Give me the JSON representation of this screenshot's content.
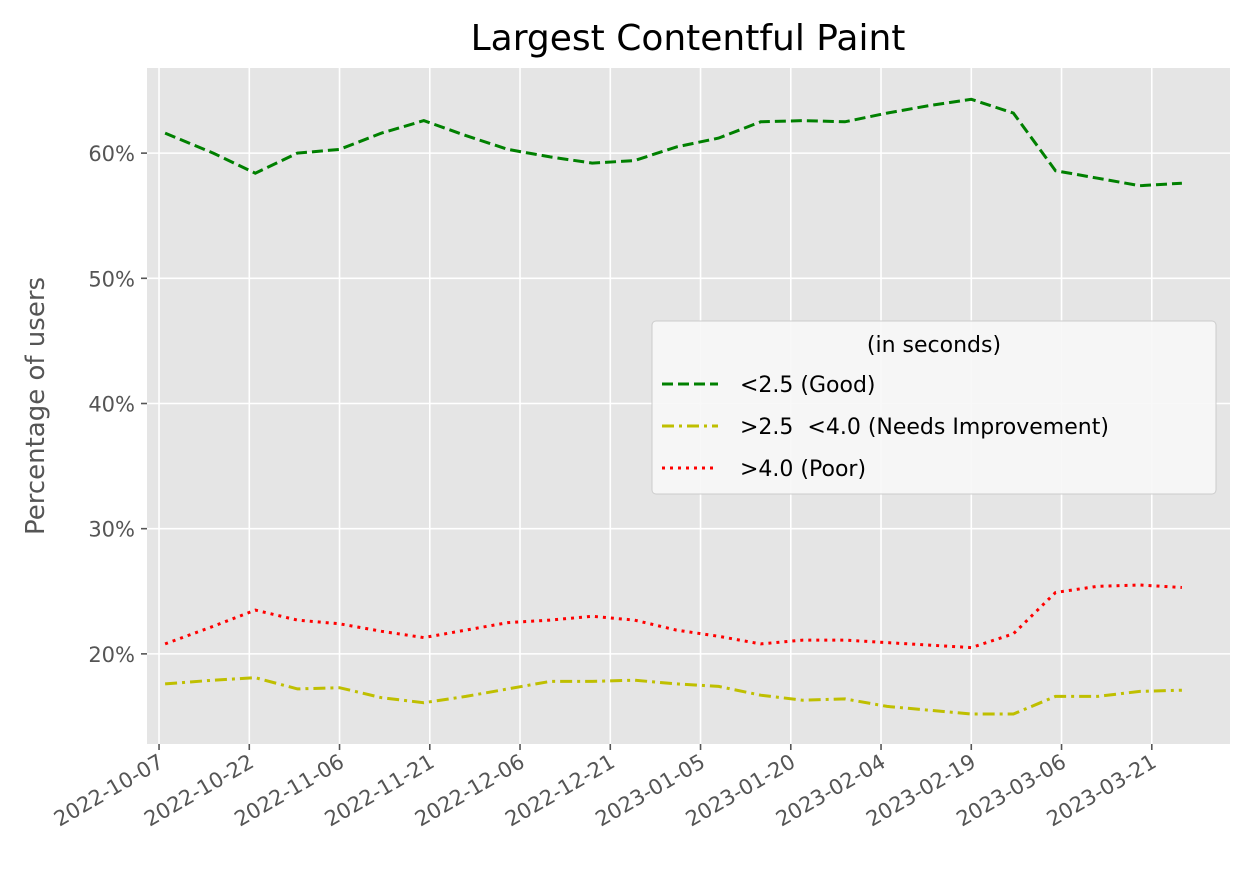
{
  "chart_data": {
    "type": "line",
    "title": "Largest Contentful Paint",
    "xlabel": "",
    "ylabel": "Percentage of users",
    "x_ticks": [
      "2022-10-07",
      "2022-10-22",
      "2022-11-06",
      "2022-11-21",
      "2022-12-06",
      "2022-12-21",
      "2023-01-05",
      "2023-01-20",
      "2023-02-04",
      "2023-02-19",
      "2023-03-06",
      "2023-03-21"
    ],
    "y_ticks": [
      20,
      30,
      40,
      50,
      60
    ],
    "y_tick_labels": [
      "20%",
      "30%",
      "40%",
      "50%",
      "60%"
    ],
    "xlim": [
      "2022-10-05",
      "2023-03-34"
    ],
    "ylim": [
      12.8,
      66.8
    ],
    "grid": true,
    "legend": {
      "title": "(in seconds)",
      "position": "center-right"
    },
    "x": [
      "2022-10-08",
      "2022-10-16",
      "2022-10-23",
      "2022-10-30",
      "2022-11-06",
      "2022-11-13",
      "2022-11-20",
      "2022-11-27",
      "2022-12-04",
      "2022-12-11",
      "2022-12-18",
      "2022-12-25",
      "2023-01-01",
      "2023-01-08",
      "2023-01-15",
      "2023-01-22",
      "2023-01-29",
      "2023-02-05",
      "2023-02-12",
      "2023-02-19",
      "2023-02-26",
      "2023-03-05",
      "2023-03-12",
      "2023-03-19",
      "2023-03-26"
    ],
    "series": [
      {
        "name": "<2.5 (Good)",
        "color": "#008000",
        "dash": "dashed",
        "values": [
          61.6,
          60.0,
          58.4,
          60.0,
          60.3,
          61.6,
          62.6,
          61.4,
          60.3,
          59.7,
          59.2,
          59.4,
          60.5,
          61.2,
          62.5,
          62.6,
          62.5,
          63.2,
          63.8,
          64.3,
          63.2,
          58.6,
          58.0,
          57.4,
          57.6
        ]
      },
      {
        "name": ">2.5  <4.0 (Needs Improvement)",
        "color": "#bfbf00",
        "dash": "dashdot",
        "values": [
          17.6,
          17.9,
          18.1,
          17.2,
          17.3,
          16.5,
          16.1,
          16.6,
          17.2,
          17.8,
          17.8,
          17.9,
          17.6,
          17.4,
          16.7,
          16.3,
          16.4,
          15.8,
          15.5,
          15.2,
          15.2,
          16.6,
          16.6,
          17.0,
          17.1
        ]
      },
      {
        "name": ">4.0 (Poor)",
        "color": "#ff0000",
        "dash": "dotted",
        "values": [
          20.8,
          22.2,
          23.5,
          22.7,
          22.4,
          21.8,
          21.3,
          21.9,
          22.5,
          22.7,
          23.0,
          22.7,
          21.9,
          21.4,
          20.8,
          21.1,
          21.1,
          20.9,
          20.7,
          20.5,
          21.6,
          24.9,
          25.4,
          25.5,
          25.3
        ]
      }
    ]
  }
}
